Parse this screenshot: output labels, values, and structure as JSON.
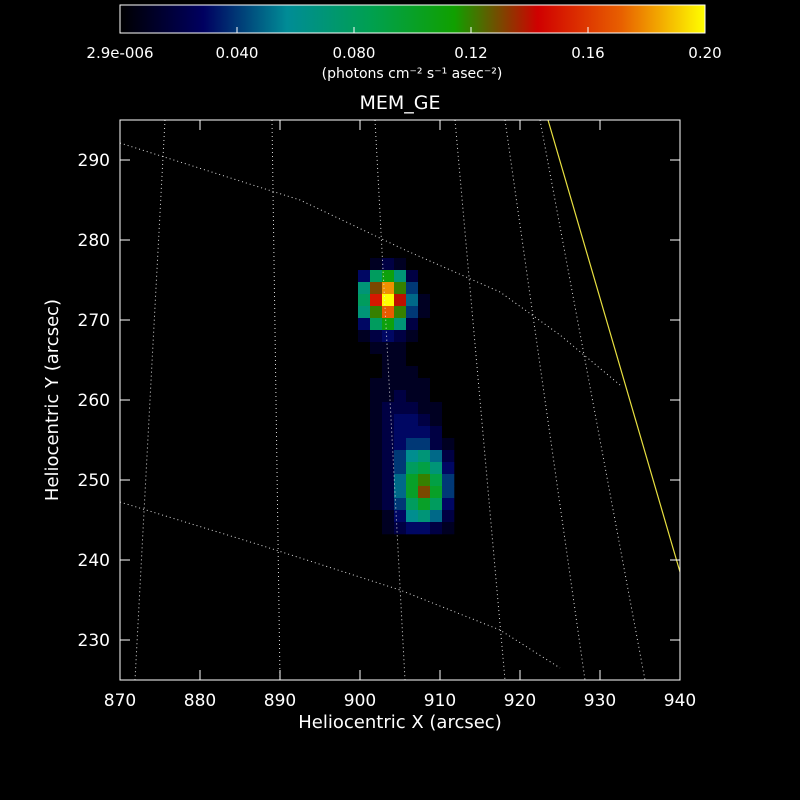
{
  "chart_data": {
    "type": "heatmap",
    "title": "MEM_GE",
    "xlabel": "Heliocentric X (arcsec)",
    "ylabel": "Heliocentric Y (arcsec)",
    "xlim": [
      870,
      940
    ],
    "ylim": [
      225,
      295
    ],
    "xticks": [
      870,
      880,
      890,
      900,
      910,
      920,
      930,
      940
    ],
    "yticks": [
      230,
      240,
      250,
      260,
      270,
      280,
      290
    ],
    "colorbar_label": "(photons cm⁻² s⁻¹ asec⁻²)",
    "clim": [
      2.9e-06,
      0.2
    ],
    "cticks": [
      {
        "value": 2.9e-06,
        "label": "2.9e-006"
      },
      {
        "value": 0.04,
        "label": "0.040"
      },
      {
        "value": 0.08,
        "label": "0.080"
      },
      {
        "value": 0.12,
        "label": "0.12"
      },
      {
        "value": 0.16,
        "label": "0.16"
      },
      {
        "value": 0.2,
        "label": "0.20"
      }
    ],
    "colormap": [
      "#000000",
      "#000060",
      "#008c96",
      "#00a050",
      "#10a000",
      "#d00000",
      "#e86000",
      "#ffff00"
    ],
    "x": [
      900.5,
      902,
      903.5,
      905,
      906.5,
      908,
      909.5,
      911
    ],
    "y": [
      277,
      275.5,
      274,
      272.5,
      271,
      269.5,
      268,
      266.5,
      265,
      263.5,
      262,
      260.5,
      259,
      257.5,
      256,
      254.5,
      253,
      251.5,
      250,
      248.5,
      247,
      245.5,
      244
    ],
    "z": [
      [
        0,
        0.01,
        0.02,
        0.01,
        0,
        0,
        0,
        0
      ],
      [
        0.03,
        0.08,
        0.11,
        0.07,
        0.02,
        0,
        0,
        0
      ],
      [
        0.07,
        0.13,
        0.18,
        0.12,
        0.04,
        0,
        0,
        0
      ],
      [
        0.08,
        0.15,
        0.2,
        0.14,
        0.05,
        0.01,
        0,
        0
      ],
      [
        0.07,
        0.12,
        0.17,
        0.12,
        0.04,
        0.01,
        0,
        0
      ],
      [
        0.03,
        0.08,
        0.11,
        0.07,
        0.02,
        0,
        0,
        0
      ],
      [
        0.01,
        0.02,
        0.03,
        0.02,
        0.01,
        0,
        0,
        0
      ],
      [
        0,
        0.01,
        0.01,
        0.01,
        0,
        0,
        0,
        0
      ],
      [
        0,
        0,
        0.01,
        0.01,
        0,
        0,
        0,
        0
      ],
      [
        0,
        0,
        0.01,
        0.01,
        0.01,
        0,
        0,
        0
      ],
      [
        0,
        0.01,
        0.01,
        0.01,
        0.01,
        0.01,
        0,
        0
      ],
      [
        0,
        0.01,
        0.01,
        0.02,
        0.01,
        0.01,
        0,
        0
      ],
      [
        0,
        0.01,
        0.02,
        0.02,
        0.02,
        0.01,
        0.01,
        0
      ],
      [
        0,
        0.01,
        0.02,
        0.03,
        0.03,
        0.02,
        0.01,
        0
      ],
      [
        0,
        0.01,
        0.02,
        0.03,
        0.03,
        0.03,
        0.02,
        0
      ],
      [
        0,
        0.01,
        0.02,
        0.03,
        0.04,
        0.04,
        0.02,
        0.01
      ],
      [
        0,
        0.01,
        0.02,
        0.04,
        0.06,
        0.07,
        0.05,
        0.02
      ],
      [
        0,
        0.01,
        0.02,
        0.04,
        0.08,
        0.09,
        0.07,
        0.03
      ],
      [
        0,
        0.01,
        0.02,
        0.05,
        0.1,
        0.12,
        0.09,
        0.04
      ],
      [
        0,
        0.01,
        0.02,
        0.05,
        0.1,
        0.13,
        0.1,
        0.04
      ],
      [
        0,
        0.01,
        0.02,
        0.04,
        0.08,
        0.1,
        0.08,
        0.03
      ],
      [
        0,
        0,
        0.01,
        0.03,
        0.06,
        0.07,
        0.05,
        0.02
      ],
      [
        0,
        0,
        0.01,
        0.02,
        0.03,
        0.03,
        0.02,
        0.01
      ]
    ]
  }
}
